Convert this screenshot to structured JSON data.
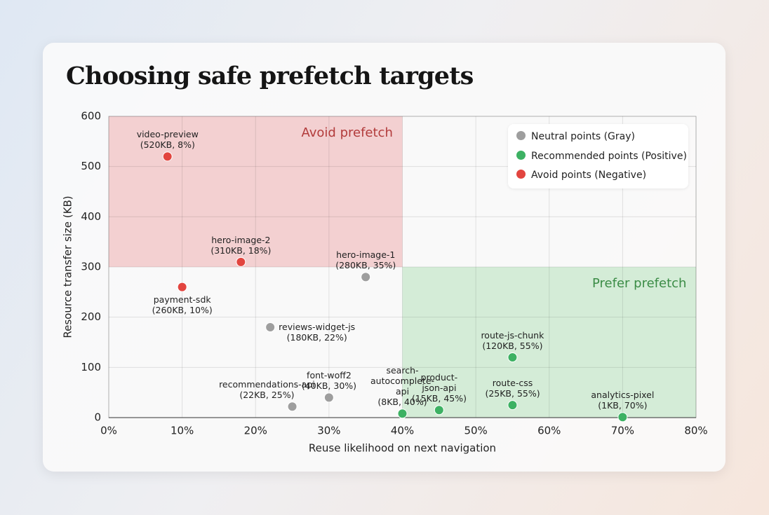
{
  "chart_data": {
    "type": "scatter",
    "title": "Choosing safe prefetch targets",
    "xlabel": "Reuse likelihood on next navigation",
    "ylabel": "Resource transfer size (KB)",
    "xlim": [
      0,
      80
    ],
    "ylim": [
      0,
      600
    ],
    "xticks": [
      {
        "value": 0,
        "label": "0%"
      },
      {
        "value": 10,
        "label": "10%"
      },
      {
        "value": 20,
        "label": "20%"
      },
      {
        "value": 30,
        "label": "30%"
      },
      {
        "value": 40,
        "label": "40%"
      },
      {
        "value": 50,
        "label": "50%"
      },
      {
        "value": 60,
        "label": "60%"
      },
      {
        "value": 70,
        "label": "70%"
      },
      {
        "value": 80,
        "label": "80%"
      }
    ],
    "yticks": [
      0,
      100,
      200,
      300,
      400,
      500,
      600
    ],
    "grid": true,
    "legend": "upper right",
    "regions": [
      {
        "label": "Avoid prefetch",
        "xlim": [
          0,
          40
        ],
        "ylim": [
          300,
          600
        ],
        "color": "#f3d0d1",
        "text_color": "#b23b3b"
      },
      {
        "label": "Prefer prefetch",
        "xlim": [
          40,
          80
        ],
        "ylim": [
          0,
          300
        ],
        "color": "#d4ecd7",
        "text_color": "#3b8c46"
      }
    ],
    "series": [
      {
        "name": "Neutral points (Gray)",
        "color": "#9e9e9e",
        "x": [
          35,
          22,
          25,
          30
        ],
        "values": [
          280,
          180,
          22,
          40
        ],
        "labels": [
          "hero-image-1",
          "reviews-widget-js",
          "recommendations-api",
          "font-woff2"
        ],
        "value_labels": [
          "(280KB, 35%)",
          "(180KB, 22%)",
          "(22KB, 25%)",
          "(40KB, 30%)"
        ]
      },
      {
        "name": "Recommended points (Positive)",
        "color": "#3db163",
        "x": [
          40,
          45,
          55,
          55,
          70
        ],
        "values": [
          8,
          15,
          120,
          25,
          1
        ],
        "labels": [
          "search-\nautocomplete-\napi",
          "product-\njson-api",
          "route-js-chunk",
          "route-css",
          "analytics-pixel"
        ],
        "value_labels": [
          "(8KB, 40%)",
          "(15KB, 45%)",
          "(120KB, 55%)",
          "(25KB, 55%)",
          "(1KB, 70%)"
        ]
      },
      {
        "name": "Avoid points (Negative)",
        "color": "#e2453f",
        "x": [
          8,
          18,
          10
        ],
        "values": [
          520,
          310,
          260
        ],
        "labels": [
          "video-preview",
          "hero-image-2",
          "payment-sdk"
        ],
        "value_labels": [
          "(520KB, 8%)",
          "(310KB, 18%)",
          "(260KB, 10%)"
        ]
      }
    ]
  }
}
